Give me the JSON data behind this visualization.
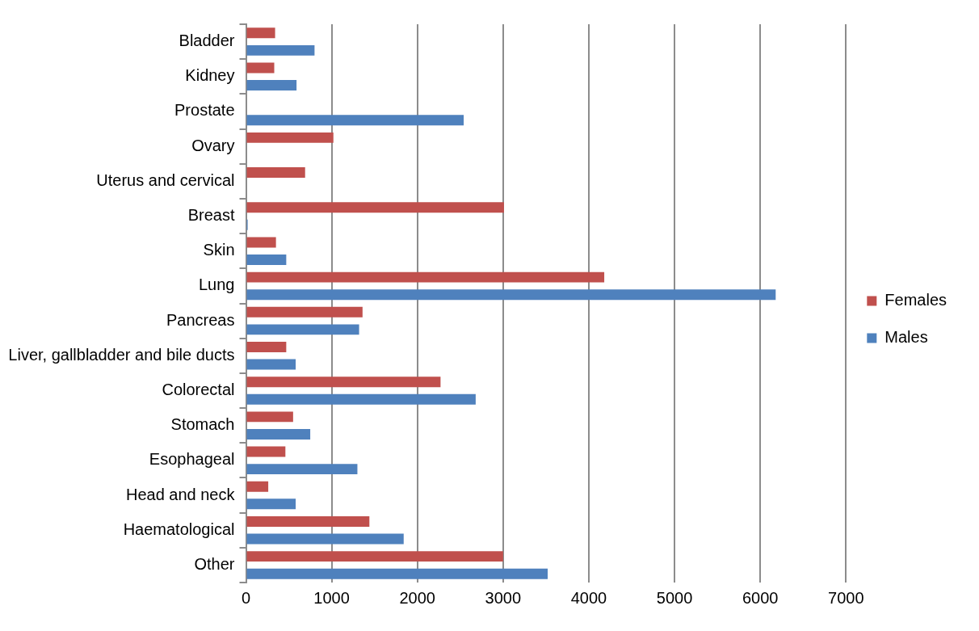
{
  "chart_data": {
    "type": "bar",
    "orientation": "horizontal",
    "categories": [
      "Bladder",
      "Kidney",
      "Prostate",
      "Ovary",
      "Uterus and cervical",
      "Breast",
      "Skin",
      "Lung",
      "Pancreas",
      "Liver, gallbladder and bile ducts",
      "Colorectal",
      "Stomach",
      "Esophageal",
      "Head and neck",
      "Haematological",
      "Other"
    ],
    "series": [
      {
        "name": "Females",
        "color": "#c0504d",
        "values": [
          340,
          330,
          null,
          1020,
          690,
          3010,
          350,
          4180,
          1360,
          470,
          2270,
          550,
          460,
          260,
          1440,
          3000
        ]
      },
      {
        "name": "Males",
        "color": "#4f81bd",
        "values": [
          800,
          590,
          2540,
          null,
          null,
          20,
          470,
          6180,
          1320,
          580,
          2680,
          750,
          1300,
          580,
          1840,
          3520
        ]
      }
    ],
    "xlim": [
      0,
      7000
    ],
    "xticks": [
      0,
      1000,
      2000,
      3000,
      4000,
      5000,
      6000,
      7000
    ],
    "grid": "x",
    "legend": "right"
  }
}
